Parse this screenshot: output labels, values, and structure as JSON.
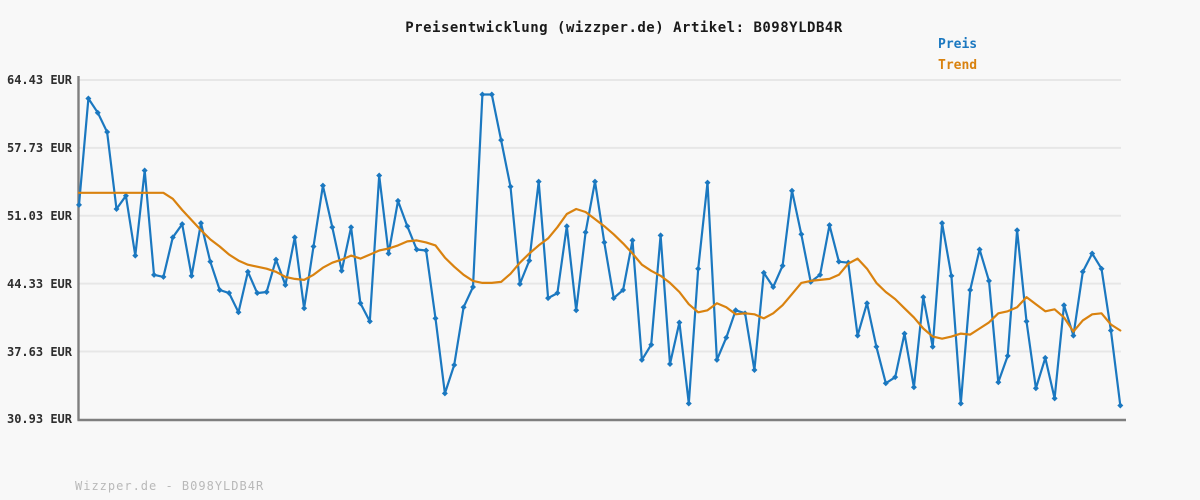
{
  "title": "Preisentwicklung (wizzper.de) Artikel: B098YLDB4R",
  "watermark": "Wizzper.de - B098YLDB4R",
  "legend": {
    "items": [
      {
        "label": "Preis",
        "color": "#1b78c0"
      },
      {
        "label": "Trend",
        "color": "#d9820f"
      }
    ]
  },
  "axis": {
    "unit": "EUR",
    "tick_labels": [
      "64.43 EUR",
      "57.73 EUR",
      "51.03 EUR",
      "44.33 EUR",
      "37.63 EUR",
      "30.93 EUR"
    ],
    "tick_values": [
      64.43,
      57.73,
      51.03,
      44.33,
      37.63,
      30.93
    ]
  },
  "colors": {
    "background": "#f8f8f8",
    "gridline": "#e7e7e7",
    "spine": "#7f7f7f",
    "tick_text": "#2e2e2e",
    "title_text": "#1a1a1a",
    "watermark_text": "#b9b9b9",
    "price_line": "#1b78c0",
    "trend_line": "#d9820f"
  },
  "chart_data": {
    "type": "line",
    "title": "Preisentwicklung (wizzper.de) Artikel: B098YLDB4R",
    "xlabel": "",
    "ylabel": "EUR",
    "ylim": [
      30.93,
      64.43
    ],
    "y_ticks": [
      64.43,
      57.73,
      51.03,
      44.33,
      37.63,
      30.93
    ],
    "x_axis_labels": "none",
    "grid": true,
    "legend_position": "top-right",
    "series": [
      {
        "name": "Preis",
        "color": "#1b78c0",
        "marker": "diamond",
        "values": [
          52.1,
          62.6,
          61.2,
          59.3,
          51.7,
          53.0,
          47.1,
          55.5,
          45.2,
          45.0,
          48.9,
          50.2,
          45.1,
          50.3,
          46.5,
          43.7,
          43.4,
          41.5,
          45.5,
          43.4,
          43.5,
          46.7,
          44.2,
          48.9,
          41.9,
          48.0,
          54.0,
          49.9,
          45.6,
          49.9,
          42.4,
          40.6,
          55.0,
          47.3,
          52.5,
          50.0,
          47.7,
          47.6,
          40.9,
          33.5,
          36.3,
          42.0,
          44.0,
          63.0,
          63.0,
          58.5,
          53.9,
          44.3,
          46.6,
          54.4,
          42.9,
          43.4,
          50.0,
          41.7,
          49.4,
          54.4,
          48.4,
          42.9,
          43.7,
          48.6,
          36.8,
          38.3,
          49.1,
          36.4,
          40.5,
          32.5,
          45.8,
          54.3,
          36.8,
          39.0,
          41.7,
          41.4,
          35.8,
          45.4,
          44.0,
          46.1,
          53.5,
          49.2,
          44.5,
          45.2,
          50.1,
          46.5,
          46.4,
          39.2,
          42.4,
          38.1,
          34.5,
          35.1,
          39.4,
          34.1,
          43.0,
          38.1,
          50.3,
          45.1,
          32.5,
          43.7,
          47.7,
          44.6,
          34.6,
          37.2,
          49.6,
          40.6,
          34.0,
          37.0,
          33.0,
          42.2,
          39.2,
          45.5,
          47.3,
          45.8,
          39.7,
          32.3
        ]
      },
      {
        "name": "Trend",
        "color": "#d9820f",
        "marker": "none",
        "values": [
          53.3,
          53.3,
          53.3,
          53.3,
          53.3,
          53.3,
          53.3,
          53.3,
          53.3,
          53.3,
          52.7,
          51.6,
          50.6,
          49.6,
          48.7,
          48.0,
          47.2,
          46.6,
          46.2,
          46.0,
          45.8,
          45.5,
          45.0,
          44.8,
          44.7,
          45.2,
          45.9,
          46.4,
          46.7,
          47.1,
          46.8,
          47.2,
          47.6,
          47.8,
          48.1,
          48.5,
          48.6,
          48.4,
          48.1,
          46.9,
          46.0,
          45.2,
          44.6,
          44.4,
          44.4,
          44.5,
          45.3,
          46.4,
          47.3,
          48.1,
          48.8,
          49.9,
          51.2,
          51.7,
          51.4,
          50.7,
          50.0,
          49.2,
          48.3,
          47.3,
          46.2,
          45.6,
          45.1,
          44.4,
          43.5,
          42.3,
          41.5,
          41.7,
          42.4,
          42.0,
          41.3,
          41.4,
          41.3,
          40.9,
          41.4,
          42.2,
          43.3,
          44.4,
          44.6,
          44.7,
          44.8,
          45.2,
          46.3,
          46.8,
          45.8,
          44.4,
          43.5,
          42.8,
          41.9,
          41.0,
          39.9,
          39.1,
          38.9,
          39.1,
          39.4,
          39.3,
          39.9,
          40.5,
          41.4,
          41.6,
          42.0,
          43.0,
          42.3,
          41.6,
          41.8,
          41.0,
          39.6,
          40.7,
          41.3,
          41.4,
          40.3,
          39.7
        ]
      }
    ]
  }
}
